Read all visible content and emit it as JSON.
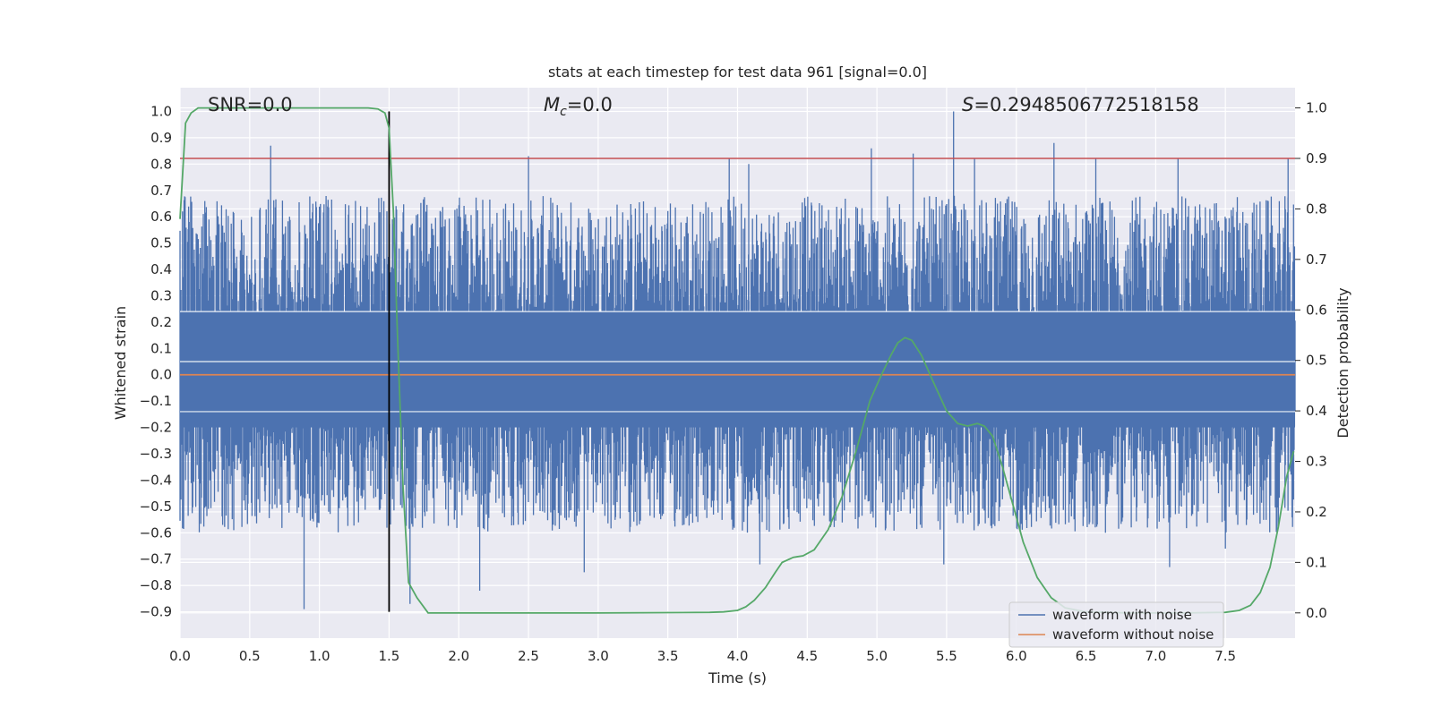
{
  "chart_data": {
    "type": "line",
    "title": "stats at each timestep for test data 961 [signal=0.0]",
    "xlabel": "Time (s)",
    "ylabel": "Whitened strain",
    "y2label": "Detection probability",
    "xlim": [
      0.0,
      8.0
    ],
    "ylim": [
      -1.0,
      1.09
    ],
    "y2lim": [
      -0.05,
      1.04
    ],
    "grid": true,
    "x_ticks": [
      0.0,
      0.5,
      1.0,
      1.5,
      2.0,
      2.5,
      3.0,
      3.5,
      4.0,
      4.5,
      5.0,
      5.5,
      6.0,
      6.5,
      7.0,
      7.5
    ],
    "x_tick_labels": [
      "0.0",
      "0.5",
      "1.0",
      "1.5",
      "2.0",
      "2.5",
      "3.0",
      "3.5",
      "4.0",
      "4.5",
      "5.0",
      "5.5",
      "6.0",
      "6.5",
      "7.0",
      "7.5"
    ],
    "y_ticks": [
      1.0,
      0.9,
      0.8,
      0.7,
      0.6,
      0.5,
      0.4,
      0.3,
      0.2,
      0.1,
      0.0,
      -0.1,
      -0.2,
      -0.3,
      -0.4,
      -0.5,
      -0.6,
      -0.7,
      -0.8,
      -0.9
    ],
    "y_tick_labels": [
      "1.0",
      "0.9",
      "0.8",
      "0.7",
      "0.6",
      "0.5",
      "0.4",
      "0.3",
      "0.2",
      "0.1",
      "0.0",
      "−0.1",
      "−0.2",
      "−0.3",
      "−0.4",
      "−0.5",
      "−0.6",
      "−0.7",
      "−0.8",
      "−0.9"
    ],
    "y2_ticks": [
      1.0,
      0.9,
      0.8,
      0.7,
      0.6,
      0.5,
      0.4,
      0.3,
      0.2,
      0.1,
      0.0
    ],
    "y2_tick_labels": [
      "1.0",
      "0.9",
      "0.8",
      "0.7",
      "0.6",
      "0.5",
      "0.4",
      "0.3",
      "0.2",
      "0.1",
      "0.0"
    ],
    "annotations": {
      "snr": "SNR=0.0",
      "mc_symbol": "M",
      "mc_subscript": "c",
      "mc_value": "=0.0",
      "s_symbol": "S",
      "s_value": "=0.2948506772518158"
    },
    "legend": {
      "placement": "lower-right",
      "entries": [
        "waveform with noise",
        "waveform without noise"
      ]
    },
    "threshold_line": {
      "axis": "y2",
      "value": 0.9,
      "color": "#c44e52"
    },
    "vertical_marker": {
      "x": 1.5,
      "y_from": -0.9,
      "y_to": 1.0,
      "color": "#000000"
    },
    "series": [
      {
        "name": "waveform with noise",
        "axis": "y",
        "color": "#4c72b0",
        "description": "whitened noisy strain, dense band approx -0.35..0.45 with spikes",
        "spikes": [
          [
            0.65,
            0.87
          ],
          [
            0.89,
            -0.89
          ],
          [
            2.5,
            0.83
          ],
          [
            3.94,
            0.82
          ],
          [
            4.08,
            0.8
          ],
          [
            4.96,
            0.86
          ],
          [
            5.26,
            0.84
          ],
          [
            5.55,
            1.0
          ],
          [
            5.7,
            0.82
          ],
          [
            6.27,
            0.88
          ],
          [
            6.57,
            0.82
          ],
          [
            7.16,
            0.82
          ],
          [
            7.95,
            0.82
          ],
          [
            1.65,
            -0.87
          ],
          [
            2.15,
            -0.82
          ],
          [
            2.9,
            -0.75
          ],
          [
            4.16,
            -0.72
          ],
          [
            5.48,
            -0.72
          ],
          [
            7.1,
            -0.73
          ],
          [
            7.5,
            -0.66
          ]
        ]
      },
      {
        "name": "waveform without noise",
        "axis": "y",
        "color": "#dd8452",
        "x": [
          0.0,
          8.0
        ],
        "y": [
          0.0,
          0.0
        ]
      },
      {
        "name": "detection probability",
        "axis": "y2",
        "color": "#55a868",
        "x": [
          0.0,
          0.04,
          0.08,
          0.13,
          0.2,
          0.3,
          0.5,
          0.8,
          1.0,
          1.2,
          1.35,
          1.42,
          1.47,
          1.5,
          1.53,
          1.56,
          1.6,
          1.64,
          1.7,
          1.78,
          1.9,
          2.2,
          3.0,
          3.8,
          3.9,
          4.0,
          4.06,
          4.12,
          4.2,
          4.27,
          4.32,
          4.4,
          4.47,
          4.55,
          4.65,
          4.75,
          4.85,
          4.95,
          5.03,
          5.1,
          5.15,
          5.2,
          5.25,
          5.32,
          5.4,
          5.5,
          5.58,
          5.65,
          5.72,
          5.77,
          5.83,
          5.9,
          5.97,
          6.05,
          6.15,
          6.25,
          6.35,
          6.5,
          6.8,
          7.2,
          7.5,
          7.6,
          7.68,
          7.75,
          7.82,
          7.88,
          7.94,
          7.99
        ],
        "y": [
          0.78,
          0.97,
          0.99,
          1.0,
          1.0,
          1.0,
          1.0,
          1.0,
          1.0,
          1.0,
          1.0,
          0.998,
          0.99,
          0.96,
          0.8,
          0.55,
          0.25,
          0.06,
          0.03,
          0.0,
          0.0,
          0.0,
          0.0,
          0.001,
          0.002,
          0.005,
          0.012,
          0.025,
          0.05,
          0.08,
          0.1,
          0.11,
          0.113,
          0.125,
          0.165,
          0.23,
          0.32,
          0.42,
          0.47,
          0.51,
          0.535,
          0.545,
          0.54,
          0.51,
          0.46,
          0.4,
          0.375,
          0.37,
          0.375,
          0.37,
          0.35,
          0.29,
          0.22,
          0.14,
          0.07,
          0.03,
          0.01,
          0.002,
          0.0,
          0.0,
          0.001,
          0.005,
          0.015,
          0.04,
          0.09,
          0.17,
          0.27,
          0.32
        ]
      }
    ]
  }
}
